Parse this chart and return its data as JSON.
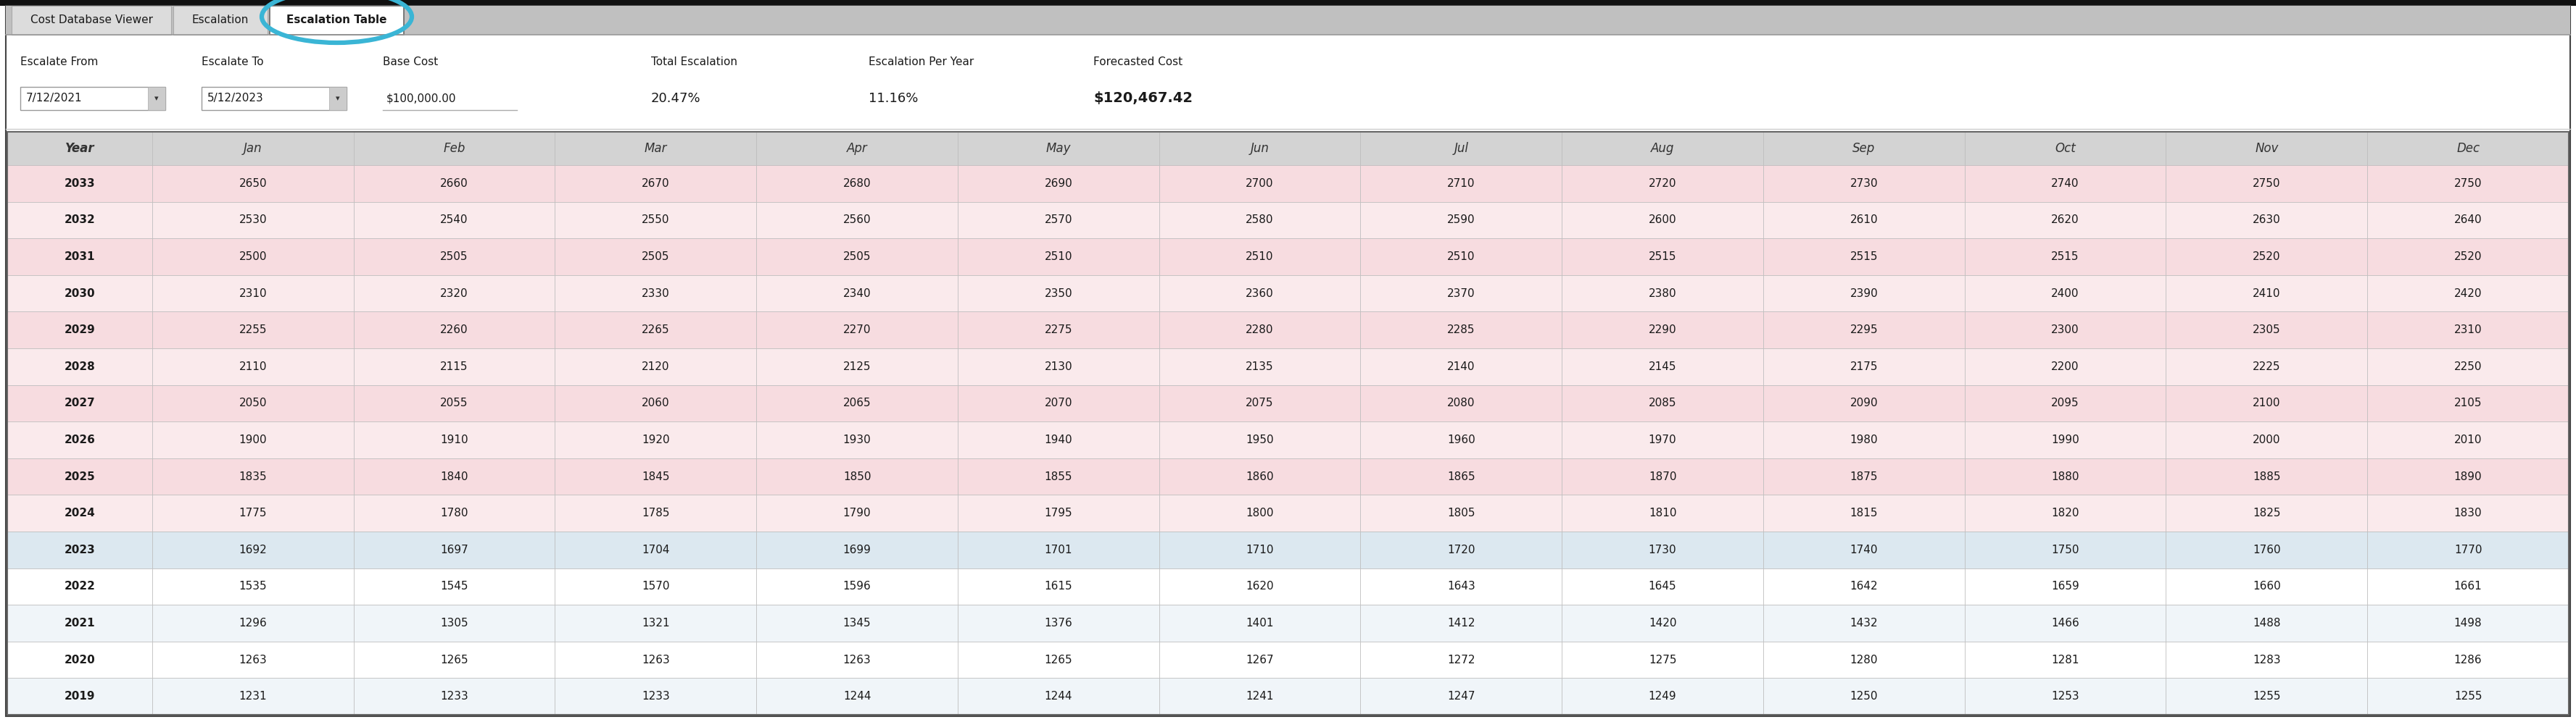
{
  "tab_labels": [
    "Cost Database Viewer",
    "Escalation",
    "Escalation Table"
  ],
  "active_tab": "Escalation Table",
  "fields": {
    "escalate_from_label": "Escalate From",
    "escalate_from_value": "7/12/2021",
    "escalate_to_label": "Escalate To",
    "escalate_to_value": "5/12/2023",
    "base_cost_label": "Base Cost",
    "base_cost_value": "$100,000.00",
    "total_escalation_label": "Total Escalation",
    "total_escalation_value": "20.47%",
    "escalation_per_year_label": "Escalation Per Year",
    "escalation_per_year_value": "11.16%",
    "forecasted_cost_label": "Forecasted Cost",
    "forecasted_cost_value": "$120,467.42"
  },
  "columns": [
    "Year",
    "Jan",
    "Feb",
    "Mar",
    "Apr",
    "May",
    "Jun",
    "Jul",
    "Aug",
    "Sep",
    "Oct",
    "Nov",
    "Dec"
  ],
  "rows": [
    [
      2033,
      2650,
      2660,
      2670,
      2680,
      2690,
      2700,
      2710,
      2720,
      2730,
      2740,
      2750,
      2750
    ],
    [
      2032,
      2530,
      2540,
      2550,
      2560,
      2570,
      2580,
      2590,
      2600,
      2610,
      2620,
      2630,
      2640
    ],
    [
      2031,
      2500,
      2505,
      2505,
      2505,
      2510,
      2510,
      2510,
      2515,
      2515,
      2515,
      2520,
      2520
    ],
    [
      2030,
      2310,
      2320,
      2330,
      2340,
      2350,
      2360,
      2370,
      2380,
      2390,
      2400,
      2410,
      2420
    ],
    [
      2029,
      2255,
      2260,
      2265,
      2270,
      2275,
      2280,
      2285,
      2290,
      2295,
      2300,
      2305,
      2310
    ],
    [
      2028,
      2110,
      2115,
      2120,
      2125,
      2130,
      2135,
      2140,
      2145,
      2175,
      2200,
      2225,
      2250
    ],
    [
      2027,
      2050,
      2055,
      2060,
      2065,
      2070,
      2075,
      2080,
      2085,
      2090,
      2095,
      2100,
      2105
    ],
    [
      2026,
      1900,
      1910,
      1920,
      1930,
      1940,
      1950,
      1960,
      1970,
      1980,
      1990,
      2000,
      2010
    ],
    [
      2025,
      1835,
      1840,
      1845,
      1850,
      1855,
      1860,
      1865,
      1870,
      1875,
      1880,
      1885,
      1890
    ],
    [
      2024,
      1775,
      1780,
      1785,
      1790,
      1795,
      1800,
      1805,
      1810,
      1815,
      1820,
      1825,
      1830
    ],
    [
      2023,
      1692,
      1697,
      1704,
      1699,
      1701,
      1710,
      1720,
      1730,
      1740,
      1750,
      1760,
      1770
    ],
    [
      2022,
      1535,
      1545,
      1570,
      1596,
      1615,
      1620,
      1643,
      1645,
      1642,
      1659,
      1660,
      1661
    ],
    [
      2021,
      1296,
      1305,
      1321,
      1345,
      1376,
      1401,
      1412,
      1420,
      1432,
      1466,
      1488,
      1498
    ],
    [
      2020,
      1263,
      1265,
      1263,
      1263,
      1265,
      1267,
      1272,
      1275,
      1280,
      1281,
      1283,
      1286
    ],
    [
      2019,
      1231,
      1233,
      1233,
      1244,
      1244,
      1241,
      1247,
      1249,
      1250,
      1253,
      1255,
      1255
    ]
  ],
  "row_colors": [
    "pink",
    "pink",
    "pink",
    "pink",
    "pink",
    "pink",
    "pink",
    "pink",
    "pink",
    "pink",
    "blue",
    "white",
    "white",
    "white",
    "white"
  ],
  "header_bg": "#d3d3d3",
  "row_bg_pink_even": "#f7dce0",
  "row_bg_pink_odd": "#faeaec",
  "row_bg_blue": "#dce8f0",
  "row_bg_white_even": "#f0f5f9",
  "row_bg_white_odd": "#ffffff",
  "border_color": "#bbbbbb",
  "tab_bg_active": "#ffffff",
  "tab_bg_inactive": "#dcdcdc",
  "outer_border": "#444444",
  "top_bar_bg": "#c0c0c0",
  "circle_color": "#3ab5d5",
  "text_color_dark": "#1a1a1a",
  "text_color_header": "#333333",
  "black_top_bar_bg": "#111111",
  "white_bg": "#ffffff"
}
